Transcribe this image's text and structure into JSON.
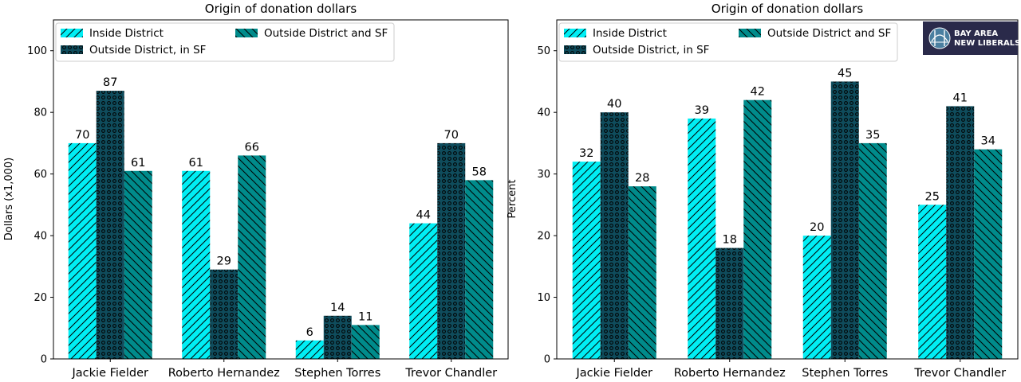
{
  "colors": {
    "inside": "#00EEF4",
    "outside_sf": "#0F4C5C",
    "outside_all": "#008B8B",
    "logo_bg": "#2A2A4A"
  },
  "logo": {
    "text_line1": "BAY AREA",
    "text_line2": "NEW LIBERALS",
    "icon": "bridge-icon"
  },
  "chart_data": [
    {
      "type": "bar",
      "title": "Origin of donation dollars",
      "xlabel": "",
      "ylabel": "Dollars (x1,000)",
      "ylim": [
        0,
        110
      ],
      "yticks": [
        0,
        20,
        40,
        60,
        80,
        100
      ],
      "categories": [
        "Jackie Fielder",
        "Roberto Hernandez",
        "Stephen Torres",
        "Trevor Chandler"
      ],
      "series": [
        {
          "name": "Inside District",
          "values": [
            70,
            61,
            6,
            44
          ],
          "pattern": "slash"
        },
        {
          "name": "Outside District, in SF",
          "values": [
            87,
            29,
            14,
            70
          ],
          "pattern": "dots"
        },
        {
          "name": "Outside District and SF",
          "values": [
            61,
            66,
            11,
            58
          ],
          "pattern": "backslash"
        }
      ],
      "legend": "top-left",
      "grid": false
    },
    {
      "type": "bar",
      "title": "Origin of donation dollars",
      "xlabel": "",
      "ylabel": "Percent",
      "ylim": [
        0,
        55
      ],
      "yticks": [
        0,
        10,
        20,
        30,
        40,
        50
      ],
      "categories": [
        "Jackie Fielder",
        "Roberto Hernandez",
        "Stephen Torres",
        "Trevor Chandler"
      ],
      "series": [
        {
          "name": "Inside District",
          "values": [
            32,
            39,
            20,
            25
          ],
          "pattern": "slash"
        },
        {
          "name": "Outside District, in SF",
          "values": [
            40,
            18,
            45,
            41
          ],
          "pattern": "dots"
        },
        {
          "name": "Outside District and SF",
          "values": [
            28,
            42,
            35,
            34
          ],
          "pattern": "backslash"
        }
      ],
      "legend": "top-left",
      "grid": false
    }
  ]
}
